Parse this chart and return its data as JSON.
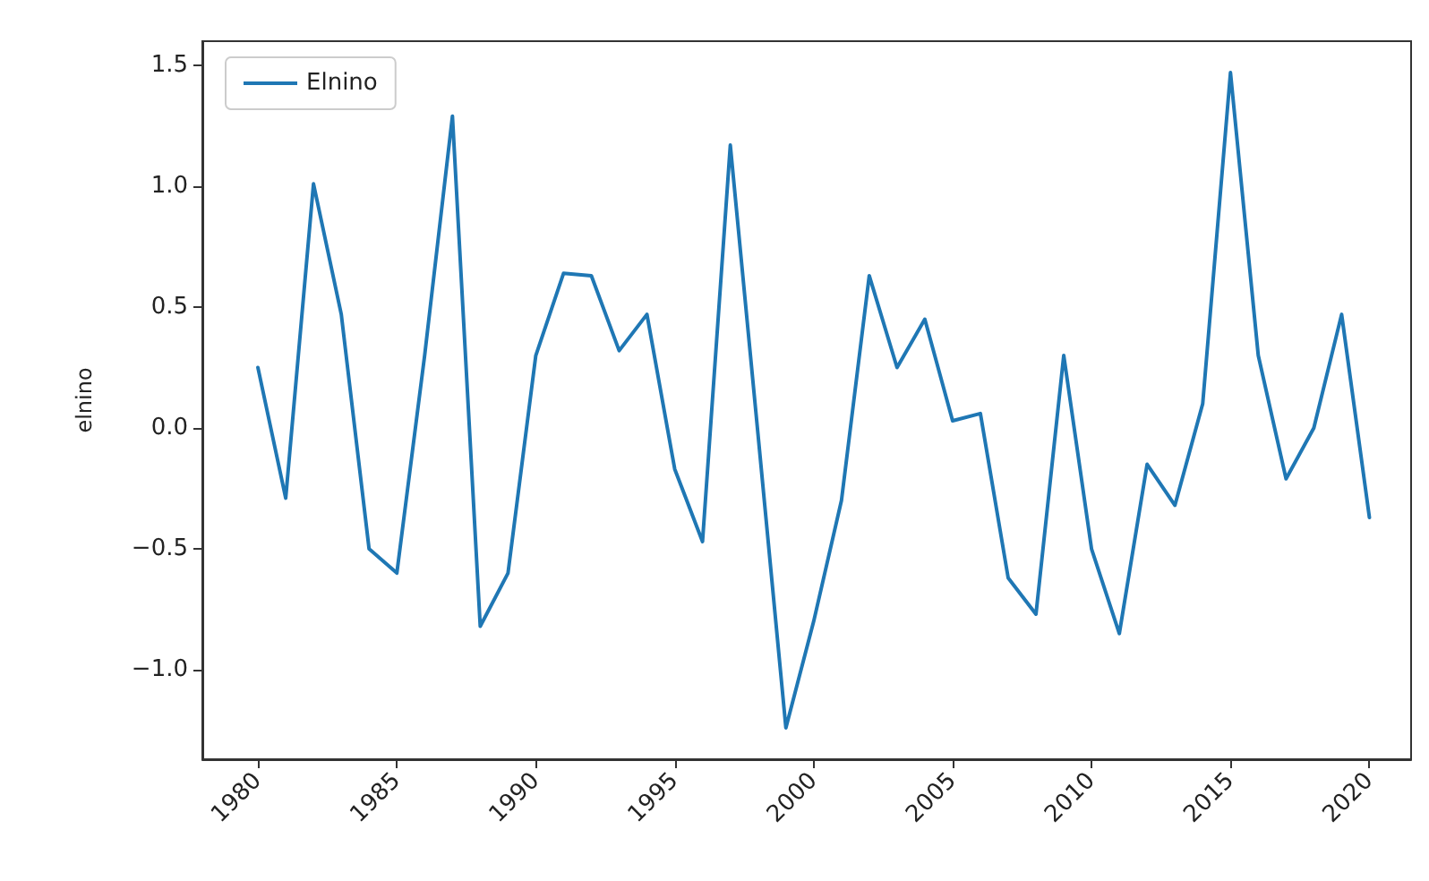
{
  "chart_data": {
    "type": "line",
    "ylabel": "elnino",
    "x": [
      1980,
      1981,
      1982,
      1983,
      1984,
      1985,
      1986,
      1987,
      1988,
      1989,
      1990,
      1991,
      1992,
      1993,
      1994,
      1995,
      1996,
      1997,
      1998,
      1999,
      2000,
      2001,
      2002,
      2003,
      2004,
      2005,
      2006,
      2007,
      2008,
      2009,
      2010,
      2011,
      2012,
      2013,
      2014,
      2015,
      2016,
      2017,
      2018,
      2019,
      2020
    ],
    "series": [
      {
        "name": "Elnino",
        "color": "#1f77b4",
        "values": [
          0.25,
          -0.29,
          1.01,
          0.47,
          -0.5,
          -0.6,
          0.3,
          1.29,
          -0.82,
          -0.6,
          0.3,
          0.64,
          0.63,
          0.32,
          0.47,
          -0.17,
          -0.47,
          1.17,
          -0.03,
          -1.24,
          -0.8,
          -0.3,
          0.63,
          0.25,
          0.45,
          0.03,
          0.06,
          -0.62,
          -0.77,
          0.3,
          -0.5,
          -0.85,
          -0.15,
          -0.32,
          0.1,
          1.47,
          0.3,
          -0.21,
          0.0,
          0.47,
          -0.37
        ]
      }
    ],
    "xlim": [
      1978,
      2021.5
    ],
    "xticks": [
      1980,
      1985,
      1990,
      1995,
      2000,
      2005,
      2010,
      2015,
      2020
    ],
    "ylim": [
      -1.37,
      1.6
    ],
    "yticks": [
      {
        "value": -1,
        "label": "−1.0"
      },
      {
        "value": -0.5,
        "label": "−0.5"
      },
      {
        "value": 0,
        "label": "0.0"
      },
      {
        "value": 0.5,
        "label": "0.5"
      },
      {
        "value": 1,
        "label": "1.0"
      },
      {
        "value": 1.5,
        "label": "1.5"
      }
    ],
    "grid": false,
    "legend": "top left",
    "marker": "none",
    "line_style": "solid"
  }
}
